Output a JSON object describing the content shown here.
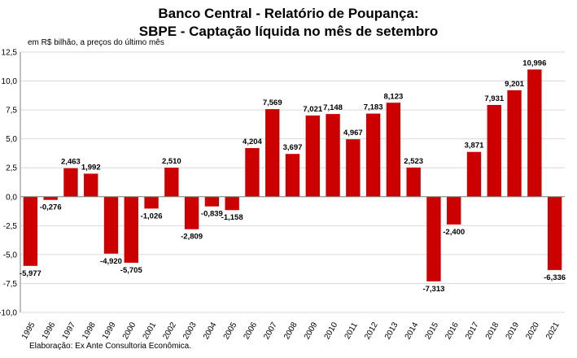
{
  "title": {
    "line1": "Banco Central - Relatório de Poupança:",
    "line2": "SBPE - Captação líquida no mês de setembro"
  },
  "unit_note": "em R$ bilhão, a preços do último mês",
  "source_note": "Elaboração: Ex Ante Consultoria Econômica.",
  "colors": {
    "bar": "#cc0000",
    "grid": "#d9d9d9",
    "axis": "#808080"
  },
  "chart_data": {
    "type": "bar",
    "title": "Banco Central - Relatório de Poupança: SBPE - Captação líquida no mês de setembro",
    "ylabel": "em R$ bilhão, a preços do último mês",
    "ylim": [
      -10,
      12.5
    ],
    "yticks": [
      12.5,
      10,
      7.5,
      5,
      2.5,
      0,
      -2.5,
      -5,
      -7.5,
      -10
    ],
    "ytick_labels": [
      "12,5",
      "10,0",
      "7,5",
      "5,0",
      "2,5",
      "0,0",
      "-2,5",
      "-5,0",
      "-7,5",
      "-10,0"
    ],
    "grid": true,
    "categories": [
      "1995",
      "1996",
      "1997",
      "1998",
      "1999",
      "2000",
      "2001",
      "2002",
      "2003",
      "2004",
      "2005",
      "2006",
      "2007",
      "2008",
      "2009",
      "2010",
      "2011",
      "2012",
      "2013",
      "2014",
      "2015",
      "2016",
      "2017",
      "2018",
      "2019",
      "2020",
      "2021"
    ],
    "values": [
      -5.977,
      -0.276,
      2.463,
      1.992,
      -4.92,
      -5.705,
      -1.026,
      2.51,
      -2.809,
      -0.839,
      -1.158,
      4.204,
      7.569,
      3.697,
      7.021,
      7.148,
      4.967,
      7.183,
      8.123,
      2.523,
      -7.313,
      -2.4,
      3.871,
      7.931,
      9.201,
      10.996,
      -6.336
    ],
    "value_labels": [
      "-5,977",
      "-0,276",
      "2,463",
      "1,992",
      "-4,920",
      "-5,705",
      "-1,026",
      "2,510",
      "-2,809",
      "-0,839",
      "-1,158",
      "4,204",
      "7,569",
      "3,697",
      "7,021",
      "7,148",
      "4,967",
      "7,183",
      "8,123",
      "2,523",
      "-7,313",
      "-2,400",
      "3,871",
      "7,931",
      "9,201",
      "10,996",
      "-6,336"
    ]
  }
}
